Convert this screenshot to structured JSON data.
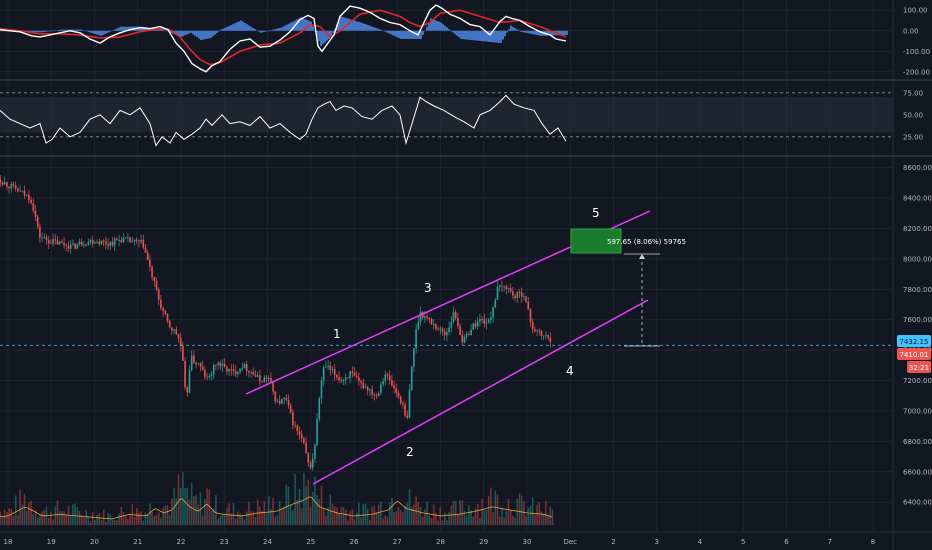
{
  "colors": {
    "background": "#131722",
    "grid": "#232838",
    "up": "#26a69a",
    "down": "#ef5350",
    "channel": "#e040fb",
    "macd_line": "#ffffff",
    "signal_line": "#e0262b",
    "histogram": "#4a7fd6",
    "rsi": "#ffffff",
    "volume_ma": "#e8a33c",
    "target_box": "#1b7d2c",
    "price_line": "#40c4ff"
  },
  "chart_data": [
    {
      "type": "line",
      "panel": "macd",
      "ylim": [
        -230,
        140
      ],
      "y_ticks": [
        "100.00",
        "0.00",
        "-100.00",
        "-200.00"
      ],
      "y_tick_values": [
        100,
        0,
        -100,
        -200
      ],
      "series": [
        {
          "role": "macd",
          "x": [
            0,
            10,
            20,
            32,
            40,
            50,
            60,
            70,
            80,
            90,
            100,
            110,
            120,
            130,
            140,
            150,
            160,
            168,
            176,
            184,
            192,
            200,
            206,
            212,
            220,
            230,
            240,
            250,
            260,
            270,
            280,
            290,
            300,
            308,
            314,
            318,
            322,
            328,
            334,
            340,
            350,
            360,
            370,
            380,
            390,
            400,
            410,
            418,
            424,
            430,
            436,
            442,
            450,
            460,
            470,
            480,
            490,
            500,
            506,
            512,
            520,
            530,
            540,
            550,
            556,
            566
          ],
          "y": [
            5,
            0,
            -5,
            -25,
            -30,
            -20,
            -10,
            0,
            -10,
            -40,
            -60,
            -30,
            -10,
            5,
            15,
            10,
            20,
            5,
            -60,
            -100,
            -160,
            -185,
            -200,
            -170,
            -150,
            -90,
            -50,
            -40,
            -80,
            -75,
            -45,
            -5,
            55,
            75,
            60,
            -75,
            -100,
            -60,
            -20,
            70,
            120,
            110,
            90,
            60,
            40,
            30,
            0,
            -20,
            40,
            100,
            125,
            110,
            80,
            60,
            30,
            20,
            -20,
            45,
            70,
            60,
            50,
            20,
            -5,
            -20,
            -40,
            -50
          ]
        },
        {
          "role": "signal",
          "x": [
            0,
            20,
            40,
            60,
            80,
            100,
            120,
            140,
            160,
            170,
            180,
            190,
            200,
            210,
            220,
            240,
            260,
            280,
            300,
            310,
            320,
            330,
            340,
            360,
            380,
            400,
            410,
            420,
            430,
            440,
            460,
            480,
            500,
            510,
            520,
            540,
            566
          ],
          "y": [
            10,
            0,
            -15,
            -15,
            -20,
            -35,
            -30,
            -5,
            10,
            5,
            -30,
            -90,
            -140,
            -165,
            -155,
            -100,
            -70,
            -60,
            -10,
            30,
            20,
            -30,
            0,
            80,
            100,
            70,
            40,
            20,
            40,
            85,
            100,
            70,
            40,
            45,
            50,
            20,
            -30
          ]
        },
        {
          "role": "histogram",
          "x": [
            0,
            20,
            40,
            60,
            80,
            100,
            120,
            140,
            160,
            180,
            190,
            200,
            210,
            220,
            240,
            260,
            280,
            300,
            310,
            320,
            330,
            340,
            360,
            380,
            400,
            410,
            420,
            430,
            440,
            460,
            480,
            500,
            510,
            520,
            540,
            566
          ],
          "y": [
            -2,
            -3,
            -8,
            5,
            6,
            -25,
            20,
            20,
            10,
            -30,
            -10,
            -45,
            -35,
            5,
            50,
            -10,
            15,
            65,
            45,
            -75,
            -30,
            70,
            40,
            5,
            -40,
            -40,
            -40,
            60,
            40,
            -40,
            -50,
            -60,
            25,
            -5,
            -25,
            -20
          ]
        }
      ]
    },
    {
      "type": "line",
      "panel": "rsi",
      "ylim": [
        10,
        85
      ],
      "y_ticks": [
        "75.00",
        "50.00",
        "25.00"
      ],
      "y_tick_values": [
        75,
        50,
        25
      ],
      "band": [
        30,
        70
      ],
      "series": [
        {
          "role": "rsi",
          "x": [
            0,
            10,
            20,
            30,
            40,
            46,
            52,
            60,
            70,
            80,
            90,
            100,
            110,
            120,
            130,
            140,
            150,
            156,
            162,
            170,
            176,
            184,
            192,
            200,
            206,
            212,
            222,
            230,
            240,
            250,
            260,
            270,
            280,
            290,
            300,
            306,
            312,
            318,
            324,
            330,
            336,
            344,
            352,
            362,
            372,
            382,
            392,
            400,
            406,
            412,
            420,
            426,
            434,
            444,
            454,
            464,
            474,
            480,
            490,
            500,
            506,
            514,
            524,
            534,
            542,
            550,
            558,
            566
          ],
          "y": [
            55,
            45,
            40,
            35,
            40,
            18,
            22,
            35,
            25,
            30,
            45,
            50,
            40,
            55,
            50,
            58,
            40,
            15,
            25,
            18,
            30,
            22,
            28,
            35,
            45,
            38,
            50,
            40,
            42,
            38,
            48,
            35,
            40,
            30,
            22,
            28,
            45,
            58,
            62,
            65,
            55,
            60,
            58,
            48,
            45,
            55,
            60,
            50,
            18,
            40,
            70,
            65,
            60,
            55,
            48,
            42,
            35,
            50,
            55,
            65,
            72,
            62,
            58,
            55,
            40,
            28,
            35,
            20
          ]
        }
      ]
    },
    {
      "type": "line",
      "panel": "price",
      "ylim": [
        6250,
        8650
      ],
      "y_ticks": [
        "8600.00",
        "8400.00",
        "8200.00",
        "8000.00",
        "7800.00",
        "7600.00",
        "7400.00",
        "7200.00",
        "7000.00",
        "6800.00",
        "6600.00",
        "6400.00"
      ],
      "y_tick_values": [
        8600,
        8400,
        8200,
        8000,
        7800,
        7600,
        7400,
        7200,
        7000,
        6800,
        6600,
        6400
      ],
      "x_ticks": [
        "18",
        "19",
        "20",
        "21",
        "22",
        "23",
        "24",
        "25",
        "26",
        "27",
        "28",
        "29",
        "30",
        "Dec",
        "2",
        "3",
        "4",
        "5",
        "6",
        "7",
        "8"
      ],
      "x_tick_values": [
        18,
        19,
        20,
        21,
        22,
        23,
        24,
        25,
        26,
        27,
        28,
        29,
        30,
        31,
        32,
        33,
        34,
        35,
        36,
        37,
        38
      ],
      "series": [
        {
          "role": "price",
          "x": [
            17.6,
            17.9,
            18.2,
            18.5,
            18.6,
            18.7,
            18.9,
            19.2,
            19.5,
            19.7,
            20.0,
            20.3,
            20.6,
            20.9,
            21.1,
            21.3,
            21.5,
            21.7,
            21.9,
            22.0,
            22.1,
            22.2,
            22.4,
            22.6,
            22.8,
            23.0,
            23.2,
            23.4,
            23.6,
            23.8,
            24.0,
            24.2,
            24.4,
            24.6,
            24.8,
            24.95,
            25.05,
            25.2,
            25.3,
            25.5,
            25.7,
            25.9,
            26.1,
            26.3,
            26.5,
            26.7,
            26.9,
            27.1,
            27.2,
            27.3,
            27.4,
            27.5,
            27.7,
            27.9,
            28.1,
            28.3,
            28.5,
            28.7,
            28.9,
            29.1,
            29.3,
            29.5,
            29.7,
            29.9,
            30.1,
            30.3,
            30.5,
            30.6
          ],
          "y": [
            8560,
            8500,
            8450,
            8400,
            8300,
            8150,
            8120,
            8100,
            8080,
            8110,
            8120,
            8100,
            8130,
            8110,
            8100,
            7900,
            7700,
            7560,
            7500,
            7400,
            7050,
            7350,
            7300,
            7200,
            7320,
            7280,
            7250,
            7300,
            7260,
            7200,
            7220,
            7050,
            7080,
            6900,
            6800,
            6620,
            6700,
            7150,
            7300,
            7250,
            7200,
            7250,
            7180,
            7150,
            7100,
            7250,
            7150,
            7050,
            6900,
            7250,
            7500,
            7650,
            7600,
            7550,
            7500,
            7650,
            7450,
            7550,
            7600,
            7580,
            7800,
            7820,
            7750,
            7780,
            7550,
            7500,
            7480,
            7432
          ]
        },
        {
          "role": "volume",
          "x": [
            17.6,
            18.0,
            18.4,
            18.8,
            19.2,
            19.6,
            20.0,
            20.4,
            20.8,
            21.2,
            21.4,
            21.6,
            21.8,
            22.0,
            22.2,
            22.4,
            22.6,
            22.8,
            23.0,
            23.4,
            23.8,
            24.2,
            24.6,
            24.8,
            25.0,
            25.2,
            25.6,
            26.0,
            26.4,
            26.8,
            27.0,
            27.2,
            27.6,
            28.0,
            28.4,
            28.8,
            29.2,
            29.6,
            30.0,
            30.4,
            30.6
          ],
          "y": [
            25,
            30,
            60,
            30,
            35,
            30,
            25,
            20,
            35,
            30,
            55,
            40,
            50,
            90,
            60,
            45,
            70,
            40,
            35,
            30,
            40,
            45,
            70,
            80,
            95,
            60,
            40,
            30,
            35,
            50,
            80,
            55,
            40,
            30,
            35,
            45,
            60,
            50,
            40,
            35,
            25
          ]
        }
      ]
    }
  ],
  "annotations": {
    "waves": [
      "1",
      "2",
      "3",
      "4",
      "5"
    ],
    "measure_label": "597.65 (8.06%) 59765",
    "measure_value": 597.65,
    "price_badges": [
      "7432.15",
      "7410.01",
      "32:21"
    ],
    "current_price": 7432.15
  }
}
